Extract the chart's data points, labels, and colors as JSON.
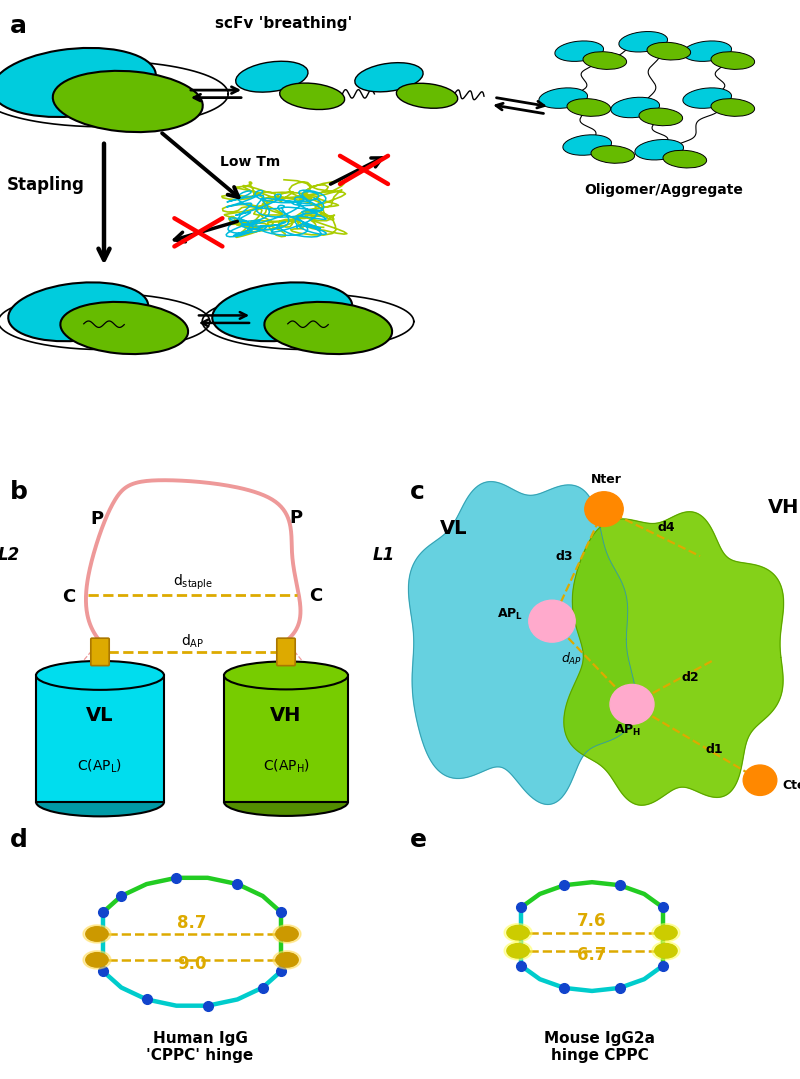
{
  "panel_a_label": "a",
  "panel_b_label": "b",
  "panel_c_label": "c",
  "panel_d_label": "d",
  "panel_e_label": "e",
  "scfv_breathing_text": "scFv 'breathing'",
  "low_tm_text": "Low Tm",
  "stapling_text": "Stapling",
  "oligomer_text": "Oligomer/Aggregate",
  "human_igg_text": "Human IgG\n'CPPC' hinge",
  "mouse_igg_text": "Mouse IgG2a\nhinge CPPC",
  "dist_8_7": "8.7",
  "dist_9_0": "9.0",
  "dist_7_6": "7.6",
  "dist_6_7": "6.7",
  "cyan_color": "#00CCDD",
  "green_color": "#66BB00",
  "panel_label_fontsize": 18,
  "background_color": "#FFFFFF",
  "vl_text": "VL",
  "vh_text": "VH",
  "cap_apl": "C(AP_L)",
  "cap_aph": "C(AP_H)",
  "l1_text": "L1",
  "l2_text": "L2",
  "nter_text": "Nter",
  "cter_text": "Cter",
  "apl_text": "AP_L",
  "aph_text": "AP_H",
  "d1_text": "d1",
  "d2_text": "d2",
  "d3_text": "d3",
  "d4_text": "d4",
  "dap_text": "d_AP",
  "dstaple_text": "d_staple"
}
